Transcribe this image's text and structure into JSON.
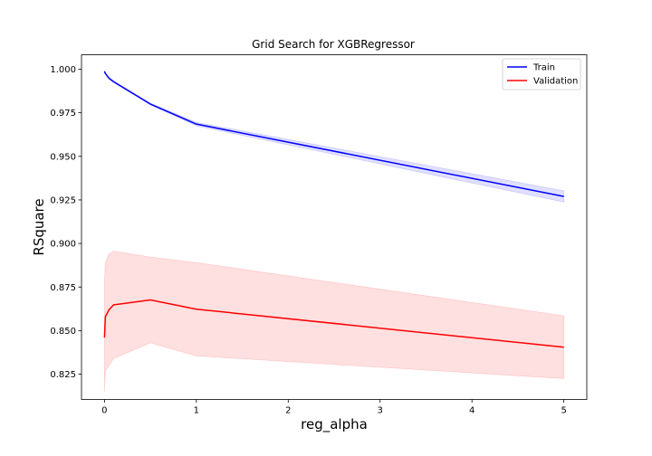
{
  "chart_data": {
    "type": "line",
    "title": "Grid Search for XGBRegressor",
    "xlabel": "reg_alpha",
    "ylabel": "RSquare",
    "xlim": [
      -0.25,
      5.25
    ],
    "ylim": [
      0.8105,
      1.0083
    ],
    "xticks": [
      0,
      1,
      2,
      3,
      4,
      5
    ],
    "yticks": [
      0.825,
      0.85,
      0.875,
      0.9,
      0.925,
      0.95,
      0.975,
      1.0
    ],
    "x": [
      0,
      0.01,
      0.05,
      0.1,
      0.5,
      1,
      5
    ],
    "legend_position": "top-right",
    "grid": false,
    "series": [
      {
        "name": "Train",
        "color": "#0000ff",
        "band_color": "#0000ff",
        "values": [
          0.9988,
          0.9975,
          0.9948,
          0.9928,
          0.98,
          0.9685,
          0.927
        ],
        "lower": [
          0.9985,
          0.9972,
          0.9944,
          0.9924,
          0.9795,
          0.9675,
          0.9238
        ],
        "upper": [
          0.9991,
          0.9978,
          0.9952,
          0.9932,
          0.9805,
          0.9695,
          0.9302
        ]
      },
      {
        "name": "Validation",
        "color": "#ff0000",
        "band_color": "#ff0000",
        "values": [
          0.846,
          0.858,
          0.862,
          0.8648,
          0.8676,
          0.8623,
          0.8405
        ],
        "lower": [
          0.815,
          0.827,
          0.83,
          0.834,
          0.843,
          0.8355,
          0.8225
        ],
        "upper": [
          0.877,
          0.889,
          0.894,
          0.8956,
          0.8922,
          0.889,
          0.8585
        ]
      }
    ]
  }
}
